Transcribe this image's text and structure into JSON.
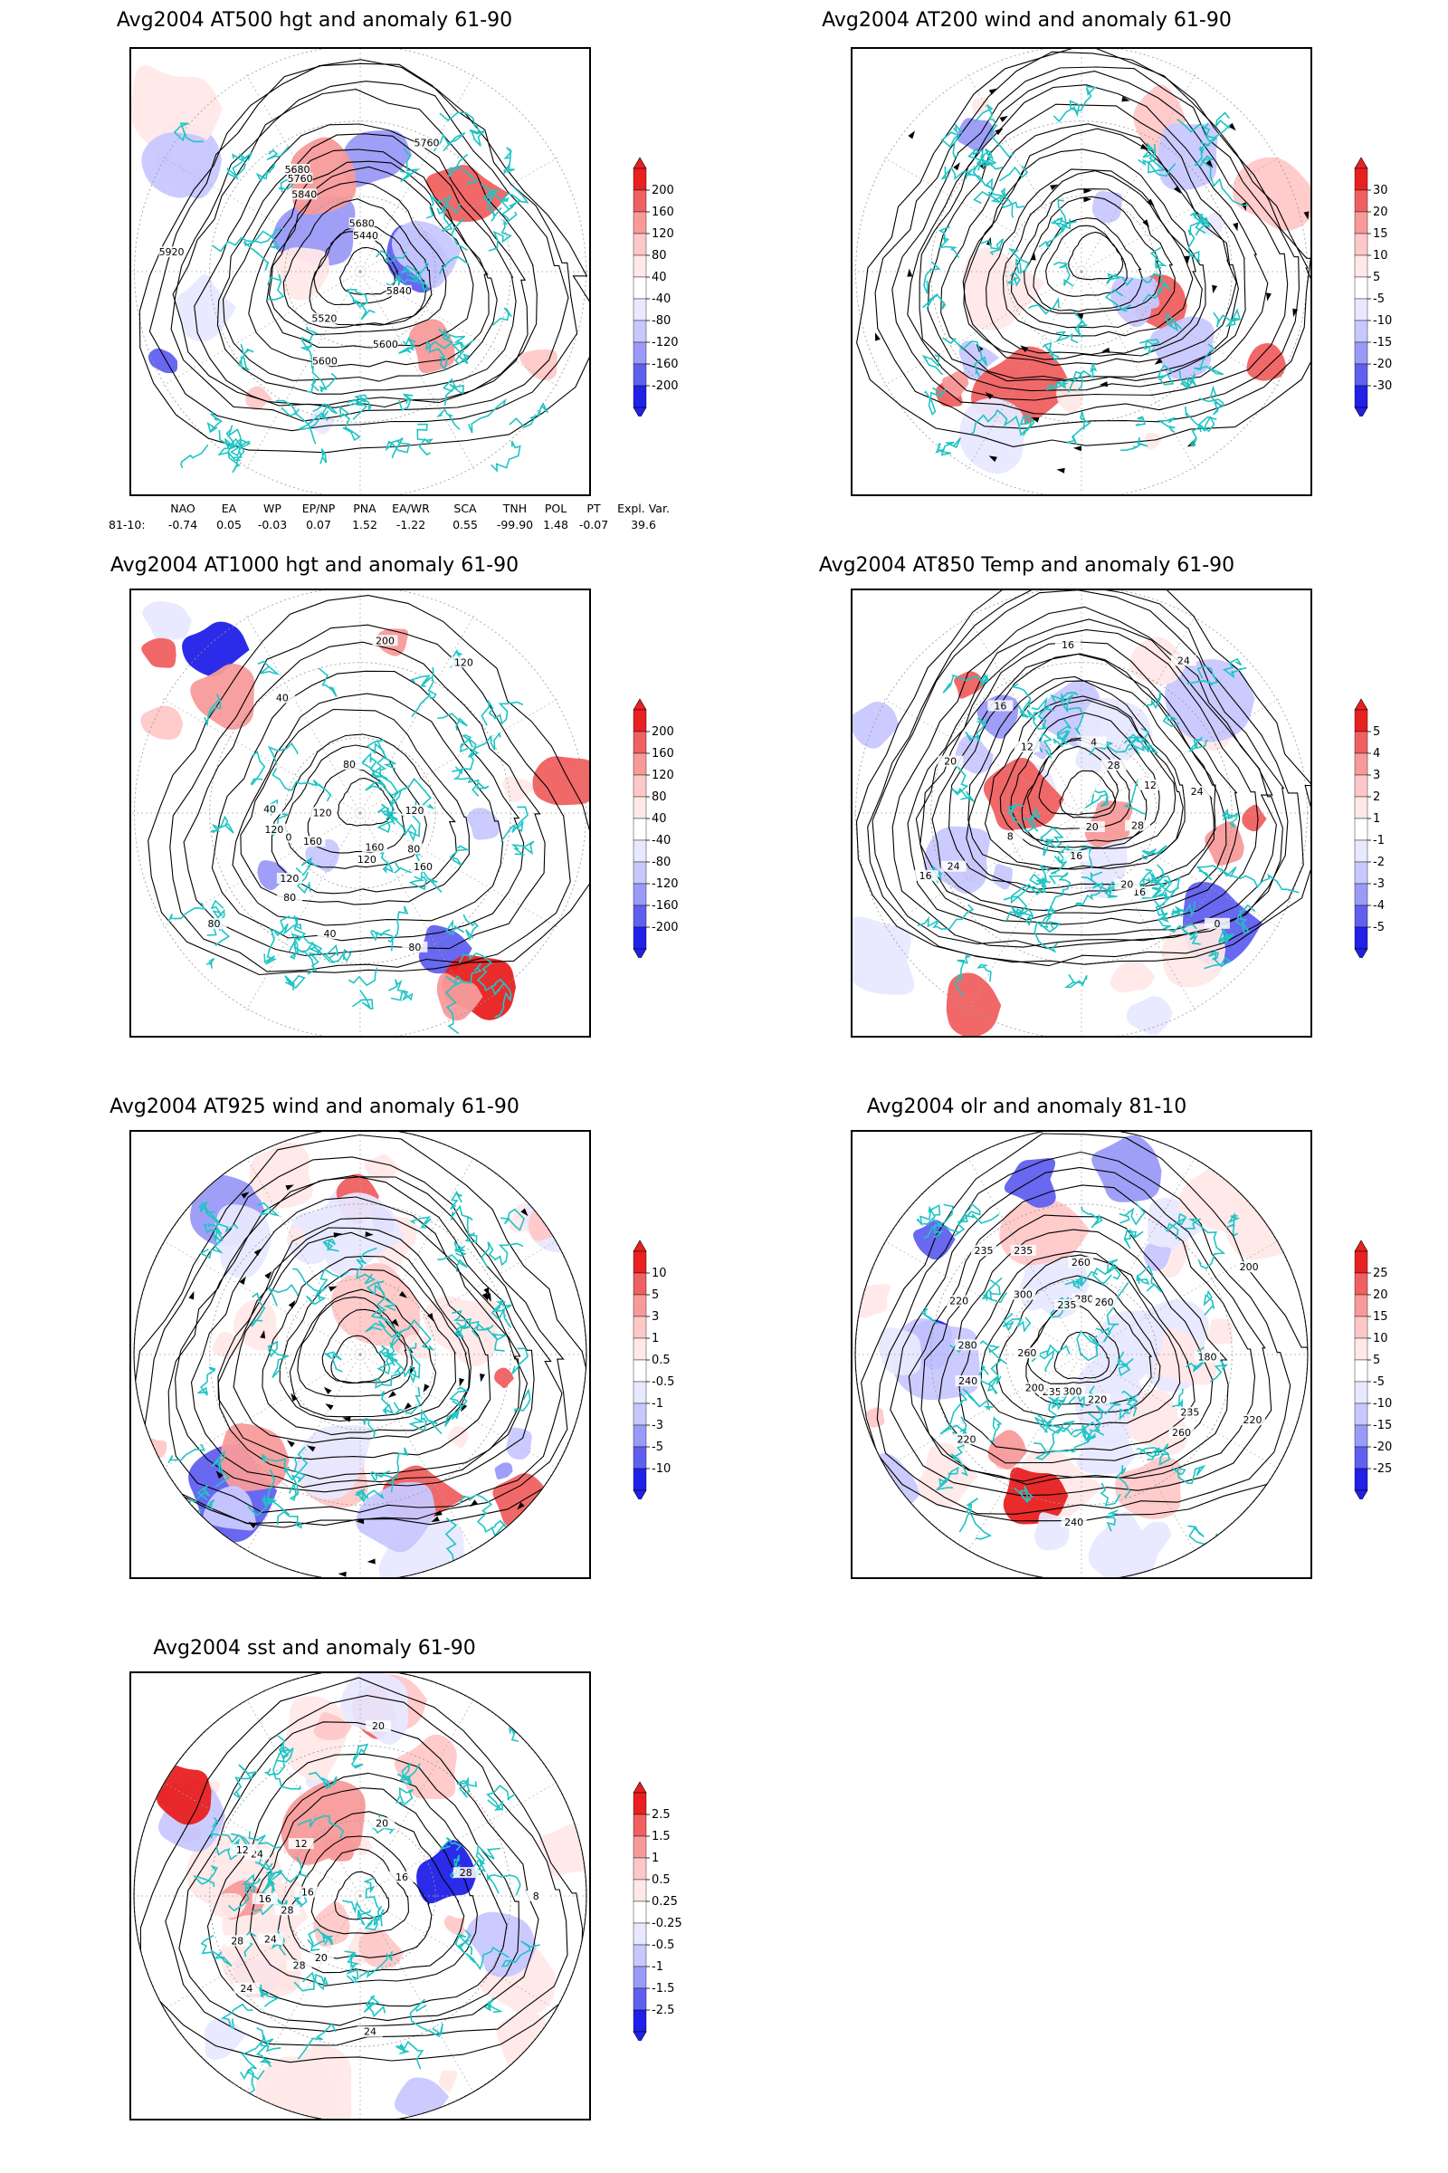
{
  "panels": [
    {
      "title": "Avg2004 AT500 hgt and anomaly 61-90",
      "colorbar": [
        "200",
        "160",
        "120",
        "80",
        "40",
        "-40",
        "-80",
        "-120",
        "-160",
        "-200"
      ],
      "contour_labels": [
        "5760",
        "5680",
        "5600",
        "5440",
        "5520",
        "5600",
        "5680",
        "5760",
        "5840",
        "5840",
        "5920"
      ]
    },
    {
      "title": "Avg2004 AT200 wind and anomaly 61-90",
      "colorbar": [
        "30",
        "20",
        "15",
        "10",
        "5",
        "-5",
        "-10",
        "-15",
        "-20",
        "-30"
      ],
      "contour_labels": []
    },
    {
      "title": "Avg2004 AT1000 hgt and anomaly 61-90",
      "colorbar": [
        "200",
        "160",
        "120",
        "80",
        "40",
        "-40",
        "-80",
        "-120",
        "-160",
        "-200"
      ],
      "contour_labels": [
        "120",
        "160",
        "80",
        "120",
        "80",
        "40",
        "160",
        "120",
        "80",
        "40",
        "120",
        "80",
        "0",
        "120",
        "200",
        "160",
        "80",
        "40",
        "120"
      ]
    },
    {
      "title": "Avg2004 AT850 Temp and anomaly 61-90",
      "colorbar": [
        "5",
        "4",
        "3",
        "2",
        "1",
        "-1",
        "-2",
        "-3",
        "-4",
        "-5"
      ],
      "contour_labels": [
        "16",
        "16",
        "12",
        "24",
        "20",
        "24",
        "28",
        "16",
        "12",
        "20",
        "24",
        "28",
        "20",
        "16",
        "16",
        "8",
        "4",
        "0"
      ]
    },
    {
      "title": "Avg2004 AT925 wind and anomaly 61-90",
      "colorbar": [
        "10",
        "5",
        "3",
        "1",
        "0.5",
        "-0.5",
        "-1",
        "-3",
        "-5",
        "-10"
      ],
      "contour_labels": []
    },
    {
      "title": "Avg2004 olr and anomaly 81-10",
      "colorbar": [
        "25",
        "20",
        "15",
        "10",
        "5",
        "-5",
        "-10",
        "-15",
        "-20",
        "-25"
      ],
      "contour_labels": [
        "280",
        "235",
        "220",
        "200",
        "235",
        "240",
        "260",
        "180",
        "235",
        "220",
        "260",
        "300",
        "235",
        "220",
        "240",
        "260",
        "235",
        "280",
        "300",
        "220",
        "260",
        "200"
      ]
    },
    {
      "title": "Avg2004 sst and anomaly 61-90",
      "colorbar": [
        "2.5",
        "1.5",
        "1",
        "0.5",
        "0.25",
        "-0.25",
        "-0.5",
        "-1",
        "-1.5",
        "-2.5"
      ],
      "contour_labels": [
        "28",
        "28",
        "24",
        "20",
        "16",
        "12",
        "8",
        "24",
        "16",
        "20",
        "24",
        "28",
        "28",
        "24",
        "12",
        "16",
        "20"
      ]
    }
  ],
  "teleconnection": {
    "headers": [
      "NAO",
      "EA",
      "WP",
      "EP/NP",
      "PNA",
      "EA/WR",
      "SCA",
      "TNH",
      "POL",
      "PT",
      "Expl. Var."
    ],
    "row_label": "81-10:",
    "values": [
      "-0.74",
      "0.05",
      "-0.03",
      "0.07",
      "1.52",
      "-1.22",
      "0.55",
      "-99.90",
      "1.48",
      "-0.07",
      "39.6"
    ]
  },
  "colors": {
    "coastline": "#20c4c4",
    "contour": "#000000",
    "positive": [
      "#ffe8e8",
      "#ffc8c8",
      "#f89a9a",
      "#f06060",
      "#e82020"
    ],
    "negative": [
      "#e8e8ff",
      "#c8c8ff",
      "#9a9af8",
      "#6060f0",
      "#2020e8"
    ]
  }
}
